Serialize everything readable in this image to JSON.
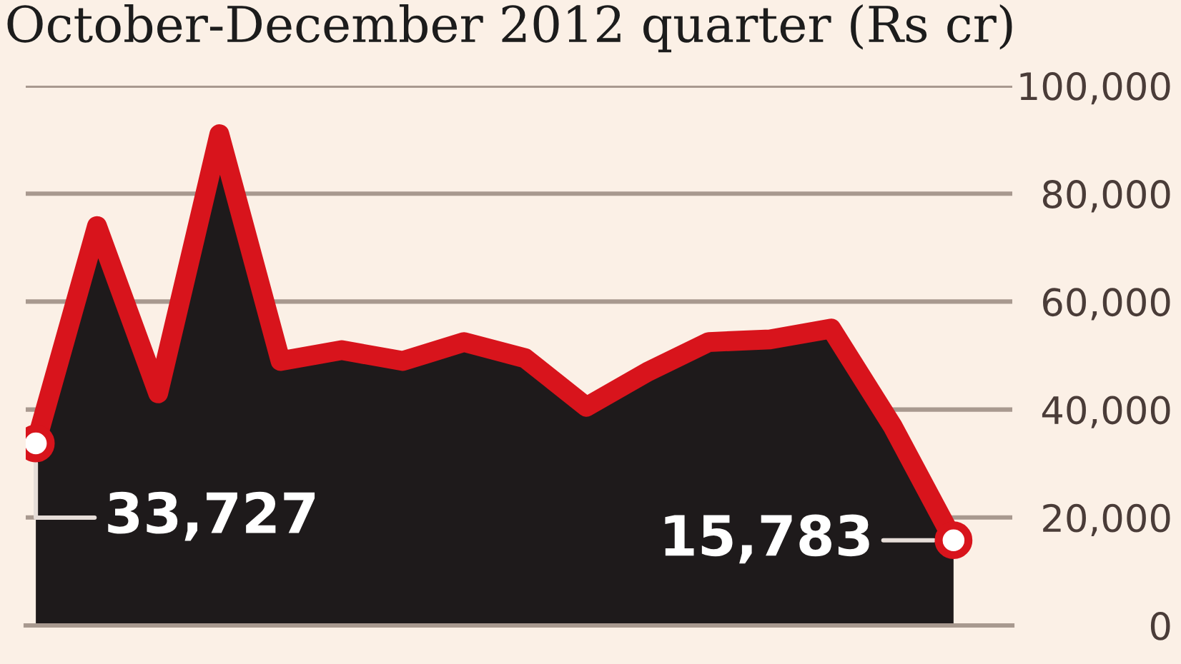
{
  "chart_data": {
    "type": "area",
    "title": "October-December 2012 quarter (Rs cr)",
    "categories": [
      null,
      null,
      null,
      null,
      null,
      null,
      null,
      null,
      null,
      null,
      null,
      null,
      null,
      null,
      null,
      null
    ],
    "series": [
      {
        "type": "area",
        "color": "#1e1a1b",
        "values": [
          33727,
          74000,
          43000,
          91000,
          49000,
          51000,
          49000,
          52500,
          49500,
          40500,
          47000,
          52500,
          53000,
          55000,
          37000,
          15783
        ],
        "value_labels": [
          "33,727",
          null,
          null,
          null,
          null,
          null,
          null,
          null,
          null,
          null,
          null,
          null,
          null,
          null,
          null,
          "15,783"
        ]
      }
    ],
    "ylim": [
      0,
      100000
    ],
    "yticks": [
      0,
      {
        "value": 20000,
        "label": "20,000"
      },
      {
        "value": 40000,
        "label": "40,000"
      },
      {
        "value": 60000,
        "label": "60,000"
      },
      {
        "value": 80000,
        "label": "80,000"
      },
      {
        "value": 100000,
        "label": "100,000"
      }
    ],
    "grid": "y",
    "tick_labels": "y"
  }
}
